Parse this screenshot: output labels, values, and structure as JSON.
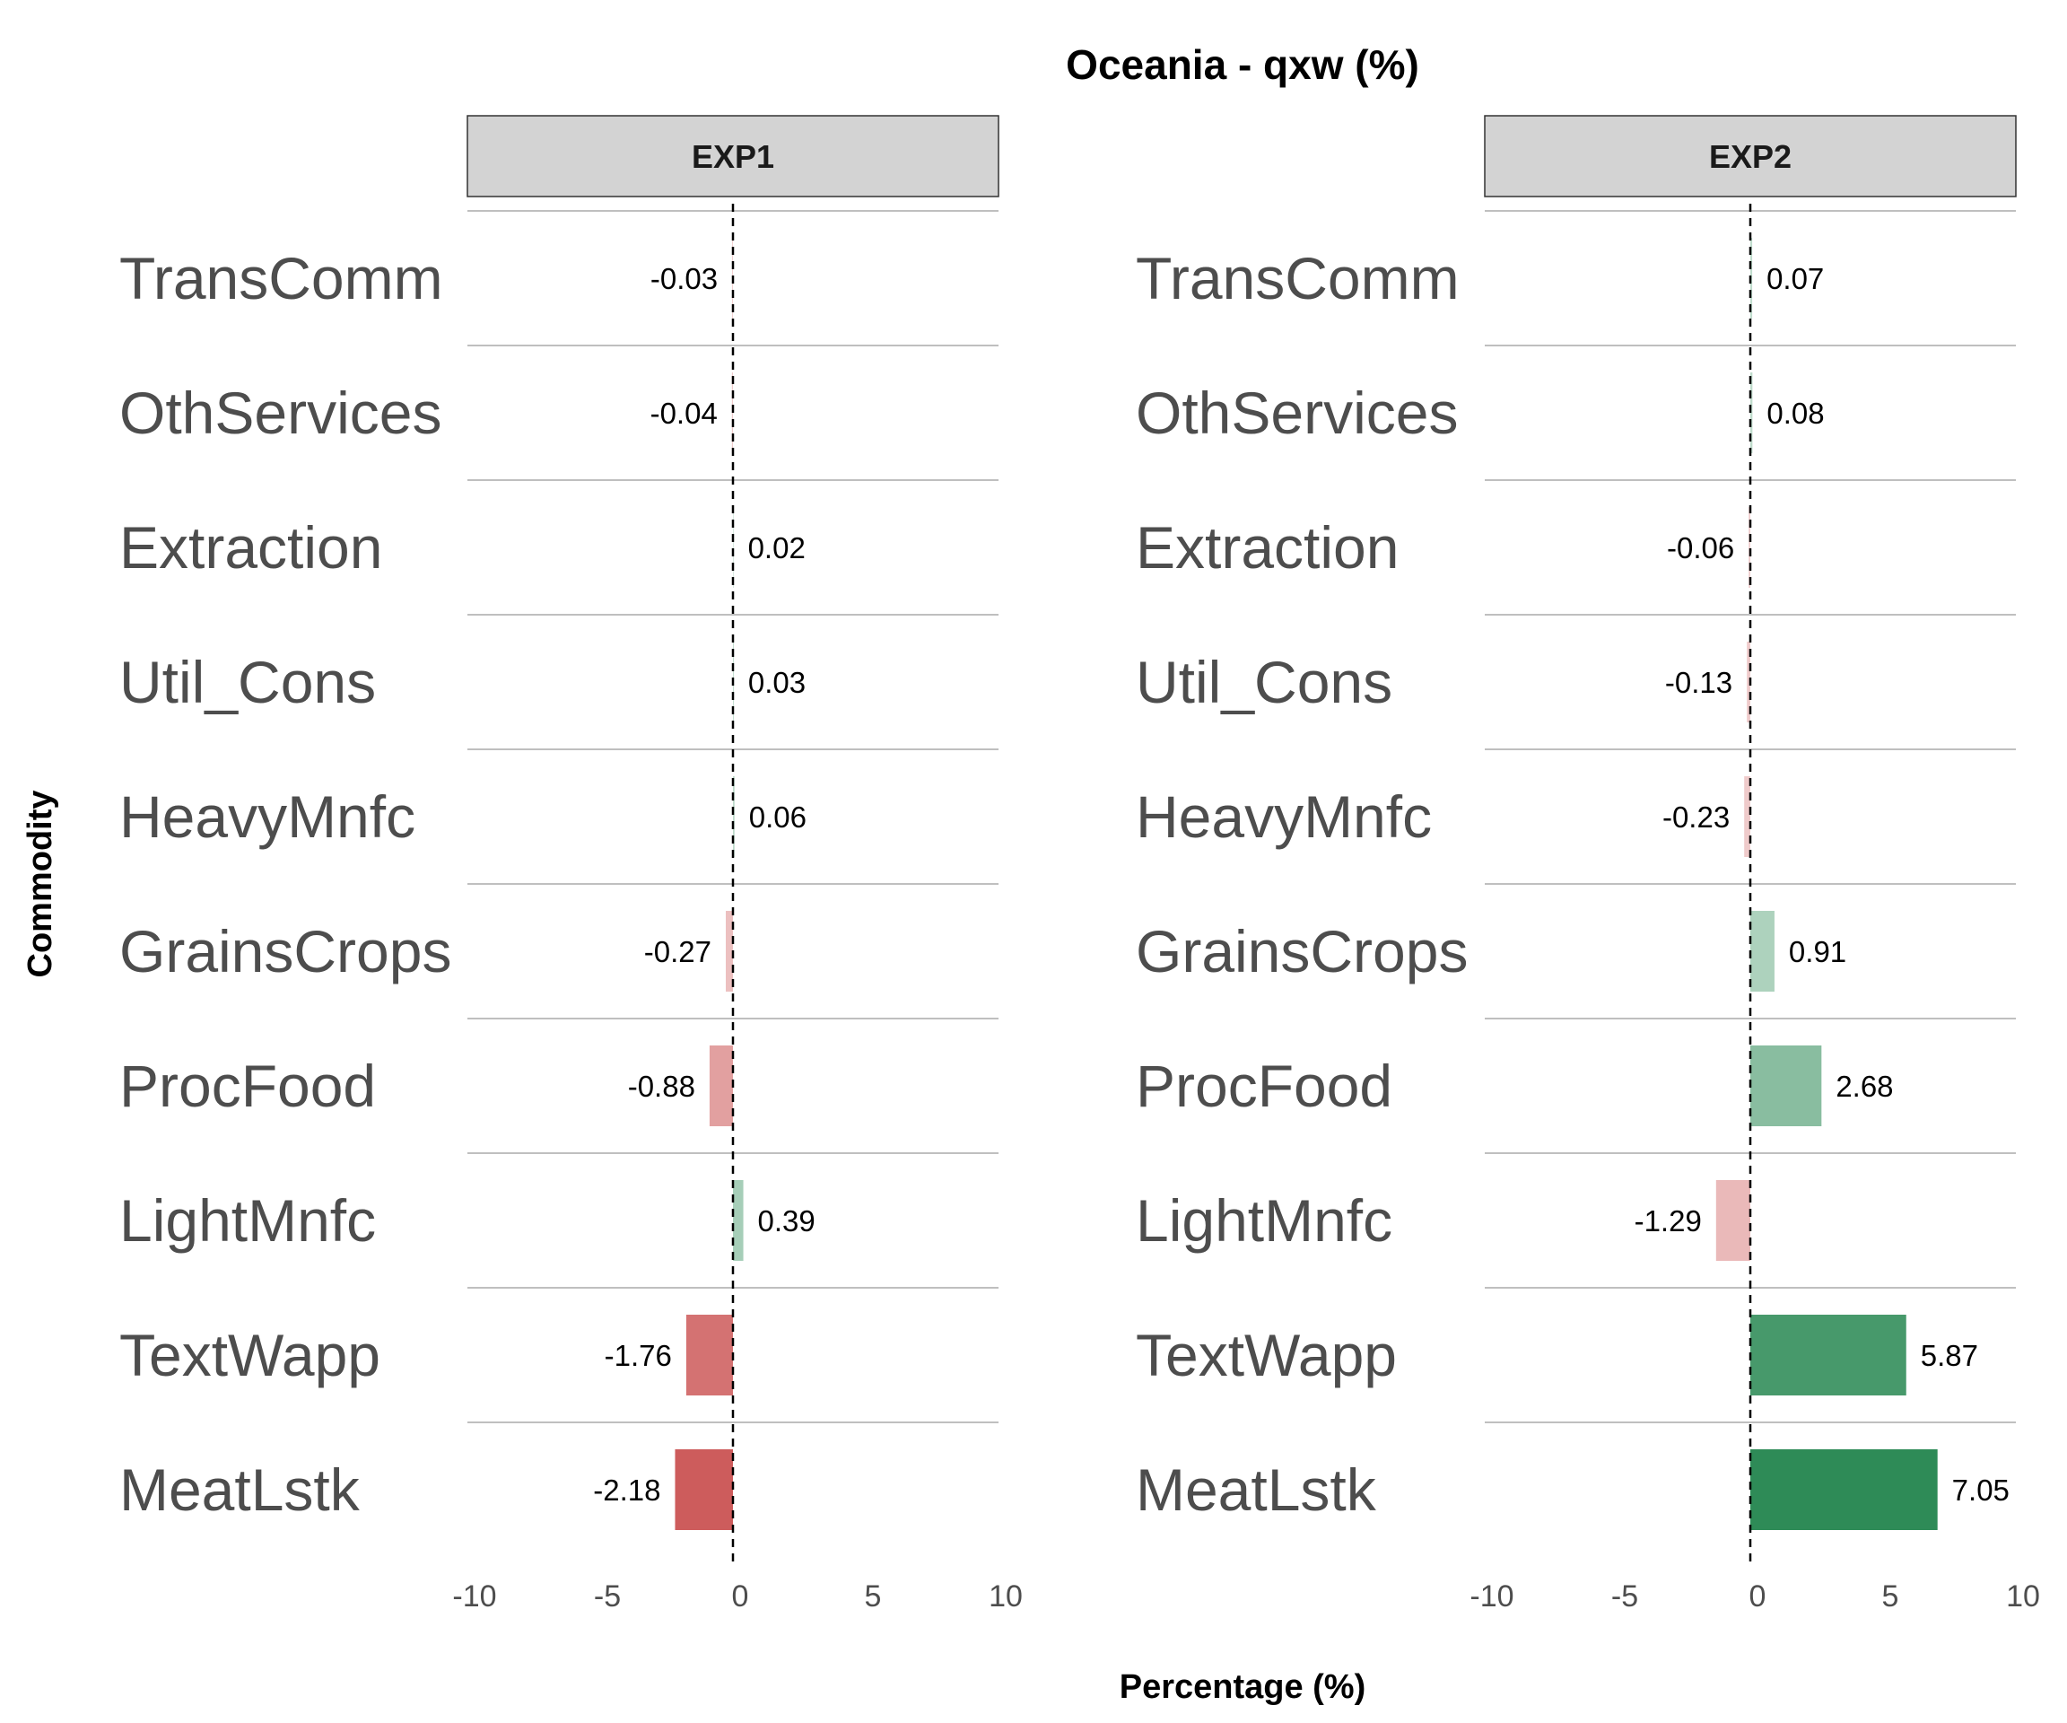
{
  "chart_data": {
    "type": "bar",
    "orientation": "horizontal",
    "title": "Oceania - qxw (%)",
    "xlabel": "Percentage (%)",
    "ylabel": "Commodity",
    "xlim": [
      -10,
      10
    ],
    "xticks": [
      -10,
      -5,
      0,
      5,
      10
    ],
    "grid": "horizontal separators",
    "zero_line": "dashed",
    "colors": {
      "positive": "#2e8b57",
      "negative": "#cd5c5c",
      "strip_fill": "#d3d3d3",
      "separator": "#bfbfbf"
    },
    "categories": [
      "TransComm",
      "OthServices",
      "Extraction",
      "Util_Cons",
      "HeavyMnfc",
      "GrainsCrops",
      "ProcFood",
      "LightMnfc",
      "TextWapp",
      "MeatLstk"
    ],
    "panels": [
      {
        "name": "EXP1",
        "values": [
          -0.03,
          -0.04,
          0.02,
          0.03,
          0.06,
          -0.27,
          -0.88,
          0.39,
          -1.76,
          -2.18
        ],
        "value_labels": [
          "-0.03",
          "-0.04",
          "0.02",
          "0.03",
          "0.06",
          "-0.27",
          "-0.88",
          "0.39",
          "-1.76",
          "-2.18"
        ]
      },
      {
        "name": "EXP2",
        "values": [
          0.07,
          0.08,
          -0.06,
          -0.13,
          -0.23,
          0.91,
          2.68,
          -1.29,
          5.87,
          7.05
        ],
        "value_labels": [
          "0.07",
          "0.08",
          "-0.06",
          "-0.13",
          "-0.23",
          "0.91",
          "2.68",
          "-1.29",
          "5.87",
          "7.05"
        ]
      }
    ]
  }
}
